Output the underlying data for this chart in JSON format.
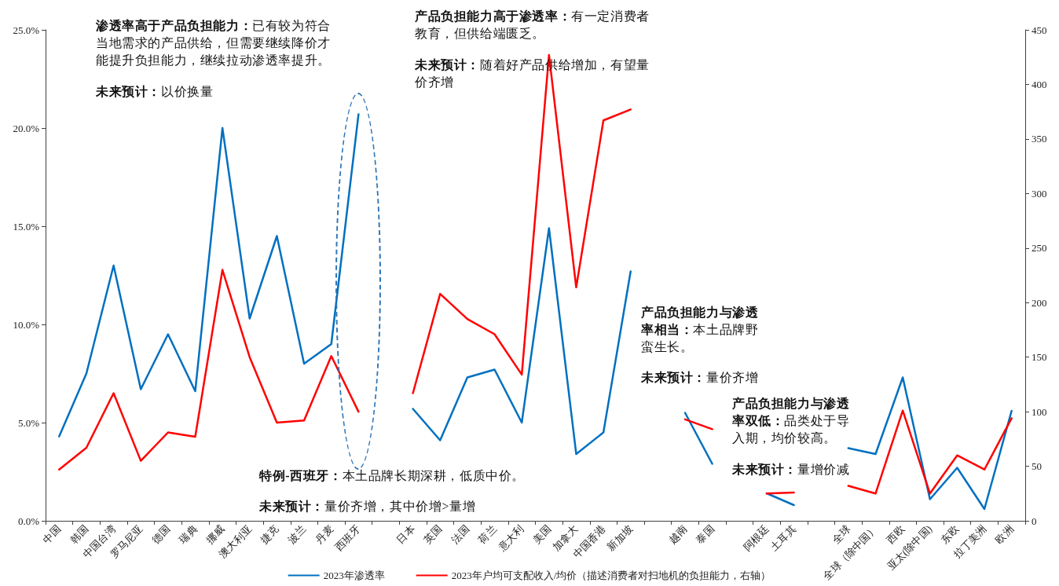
{
  "chart_data": {
    "type": "line",
    "categories": [
      "中国",
      "韩国",
      "中国台湾",
      "罗马尼亚",
      "德国",
      "瑞典",
      "挪威",
      "澳大利亚",
      "捷克",
      "波兰",
      "丹麦",
      "西班牙",
      null,
      "日本",
      "英国",
      "法国",
      "荷兰",
      "意大利",
      "美国",
      "加拿大",
      "中国香港",
      "新加坡",
      null,
      "越南",
      "泰国",
      null,
      "阿根廷",
      "土耳其",
      null,
      "全球",
      "全球（除中国）",
      "西欧",
      "亚太(除中国)",
      "东欧",
      "拉丁美洲",
      "欧洲"
    ],
    "series": [
      {
        "name": "2023年渗透率",
        "color": "#0070c0",
        "values": [
          4.3,
          7.5,
          13.0,
          6.7,
          9.5,
          6.6,
          20.0,
          10.3,
          14.5,
          8.0,
          9.0,
          20.7,
          null,
          5.7,
          4.1,
          7.3,
          7.7,
          5.0,
          14.9,
          3.4,
          4.5,
          12.7,
          null,
          5.5,
          2.9,
          null,
          1.4,
          0.8,
          null,
          3.7,
          3.4,
          7.3,
          1.1,
          2.7,
          0.6,
          5.6
        ]
      },
      {
        "name": "2023年户均可支配收入/均价（描述消费者对扫地机的负担能力，右轴）",
        "color": "#ff0000",
        "axis": "y2",
        "values": [
          47,
          67,
          117,
          55,
          81,
          77,
          230,
          150,
          90,
          92,
          151,
          100,
          null,
          117,
          208,
          185,
          171,
          134,
          427,
          214,
          367,
          377,
          null,
          93,
          84,
          null,
          25,
          26,
          null,
          32,
          25,
          101,
          25,
          60,
          47,
          94
        ]
      }
    ],
    "ylim": [
      0,
      25
    ],
    "yticks": [
      {
        "value": 0,
        "label": "0.0%"
      },
      {
        "value": 5,
        "label": "5.0%"
      },
      {
        "value": 10,
        "label": "10.0%"
      },
      {
        "value": 15,
        "label": "15.0%"
      },
      {
        "value": 20,
        "label": "20.0%"
      },
      {
        "value": 25,
        "label": "25.0%"
      }
    ],
    "y2lim": [
      0,
      450
    ],
    "y2ticks": [
      0,
      50,
      100,
      150,
      200,
      250,
      300,
      350,
      400,
      450
    ],
    "grid": false,
    "legend": "bottom",
    "marker": "none",
    "line_style": "solid",
    "annotations": [
      "渗透率高于产品负担能力：已有较为符合当地需求的产品供给，但需要继续降价才能提升负担能力，继续拉动渗透率提升。",
      "未来预计：以价换量",
      "产品负担能力高于渗透率：有一定消费者教育，但供给端匮乏。",
      "未来预计：随着好产品供给增加，有望量价齐增",
      "产品负担能力与渗透率相当：本土品牌野蛮生长。",
      "未来预计：量价齐增",
      "产品负担能力与渗透率双低：品类处于导入期，均价较高。",
      "未来预计：量增价减",
      "特例-西班牙：本土品牌长期深耕，低质中价。",
      "未来预计：量价齐增，其中价增>量增"
    ]
  }
}
